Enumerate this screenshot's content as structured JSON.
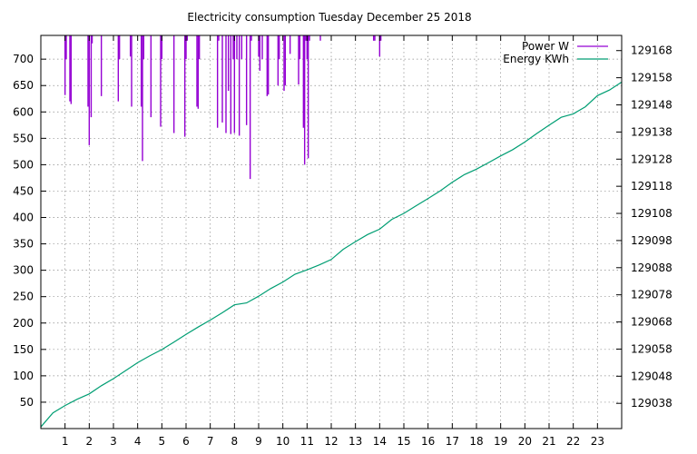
{
  "chart_data": {
    "type": "line",
    "title": "Electricity consumption Tuesday December 25 2018",
    "xlabel": "",
    "ylabel": "",
    "y2label": "",
    "grid": true,
    "legend_position": "top-right",
    "xlim": [
      0,
      24
    ],
    "ylim": [
      0,
      745
    ],
    "y2lim": [
      129028.7,
      129173.6
    ],
    "x_ticks": [
      1,
      2,
      3,
      4,
      5,
      6,
      7,
      8,
      9,
      10,
      11,
      12,
      13,
      14,
      15,
      16,
      17,
      18,
      19,
      20,
      21,
      22,
      23
    ],
    "y_ticks": [
      50,
      100,
      150,
      200,
      250,
      300,
      350,
      400,
      450,
      500,
      550,
      600,
      650,
      700
    ],
    "y2_ticks": [
      129038,
      129048,
      129058,
      129068,
      129078,
      129088,
      129098,
      129108,
      129118,
      129128,
      129138,
      129148,
      129158,
      129168
    ],
    "series": [
      {
        "name": "Power W",
        "axis": "y1",
        "color": "#9400d3",
        "style": "impulse",
        "top": 745,
        "x": [
          1.0,
          1.05,
          1.2,
          1.25,
          1.95,
          2.0,
          2.08,
          2.12,
          2.5,
          3.2,
          3.25,
          3.7,
          3.75,
          4.15,
          4.2,
          4.25,
          4.55,
          4.95,
          5.0,
          5.5,
          5.95,
          6.0,
          6.05,
          6.45,
          6.5,
          6.55,
          7.3,
          7.35,
          7.5,
          7.65,
          7.75,
          7.85,
          7.95,
          8.0,
          8.1,
          8.2,
          8.3,
          8.5,
          8.65,
          8.7,
          9.0,
          9.05,
          9.15,
          9.35,
          9.4,
          9.8,
          9.85,
          10.05,
          10.1,
          10.3,
          10.65,
          10.7,
          10.85,
          10.9,
          10.95,
          11.0,
          11.05,
          11.1,
          11.55,
          13.75,
          13.8,
          14.0,
          14.05
        ],
        "values": [
          632,
          700,
          620,
          615,
          610,
          537,
          590,
          730,
          630,
          620,
          700,
          705,
          610,
          610,
          507,
          700,
          590,
          572,
          700,
          560,
          553,
          700,
          735,
          610,
          606,
          700,
          570,
          735,
          580,
          560,
          640,
          558,
          700,
          560,
          700,
          555,
          700,
          575,
          473,
          735,
          705,
          678,
          700,
          630,
          633,
          650,
          700,
          640,
          650,
          710,
          652,
          700,
          570,
          500,
          735,
          700,
          512,
          735,
          735,
          735,
          735,
          705,
          735
        ]
      },
      {
        "name": "Energy KWh",
        "axis": "y2",
        "color": "#009e73",
        "style": "line",
        "x": [
          0,
          0.5,
          1.0,
          1.5,
          2.0,
          2.5,
          3.0,
          3.5,
          4.0,
          4.5,
          5.0,
          5.5,
          6.0,
          6.5,
          7.0,
          7.5,
          8.0,
          8.5,
          9.0,
          9.5,
          10.0,
          10.5,
          11.0,
          11.5,
          12.0,
          12.5,
          13.0,
          13.5,
          14.0,
          14.5,
          15.0,
          15.5,
          16.0,
          16.5,
          17.0,
          17.5,
          18.0,
          18.5,
          19.0,
          19.5,
          20.0,
          20.5,
          21.0,
          21.5,
          22.0,
          22.5,
          23.0,
          23.5,
          24.0
        ],
        "values": [
          129029.3,
          129034.5,
          129037.2,
          129039.5,
          129041.5,
          129044.5,
          129047.1,
          129050.0,
          129053.0,
          129055.5,
          129057.8,
          129060.6,
          129063.4,
          129066.1,
          129068.7,
          129071.4,
          129074.3,
          129075.0,
          129077.5,
          129080.3,
          129082.7,
          129085.6,
          129087.2,
          129089.0,
          129091.0,
          129094.8,
          129097.6,
          129100.2,
          129102.2,
          129105.8,
          129108.0,
          129110.8,
          129113.5,
          129116.3,
          129119.5,
          129122.3,
          129124.3,
          129126.7,
          129129.2,
          129131.5,
          129134.3,
          129137.5,
          129140.5,
          129143.4,
          129144.7,
          129147.3,
          129151.4,
          129153.5,
          129156.4
        ]
      }
    ]
  }
}
